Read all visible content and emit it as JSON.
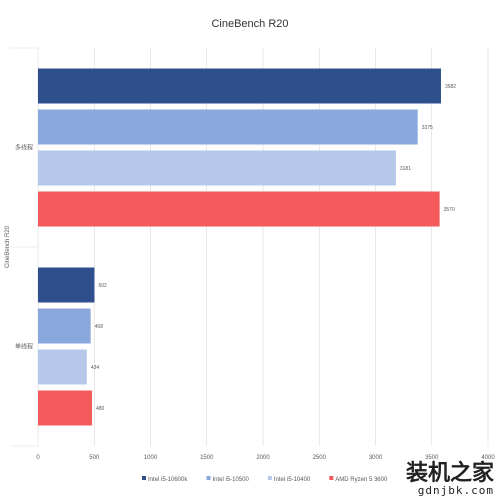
{
  "chart_data": {
    "type": "bar",
    "orientation": "horizontal",
    "title": "CineBench R20",
    "ylabel": "CineBench R20",
    "xlabel": "",
    "categories": [
      "多线程",
      "单线程"
    ],
    "series": [
      {
        "name": "Intel i5-10600k",
        "color": "#2e4e8c",
        "values": [
          3582,
          502
        ]
      },
      {
        "name": "Intel i5-10500",
        "color": "#8aa8dc",
        "values": [
          3375,
          468
        ]
      },
      {
        "name": "Intel i5-10400",
        "color": "#b6c8ea",
        "values": [
          3181,
          434
        ]
      },
      {
        "name": "AMD Ryzen 5 3600",
        "color": "#f25a5c",
        "values": [
          3570,
          480
        ]
      }
    ],
    "xlim": [
      0,
      4000
    ],
    "xticks": [
      0,
      500,
      1000,
      1500,
      2000,
      2500,
      3000,
      3500,
      4000
    ],
    "grid": true,
    "legend": "bottom"
  },
  "watermark": {
    "main": "装机之家",
    "url": "gdnjbk.com"
  }
}
